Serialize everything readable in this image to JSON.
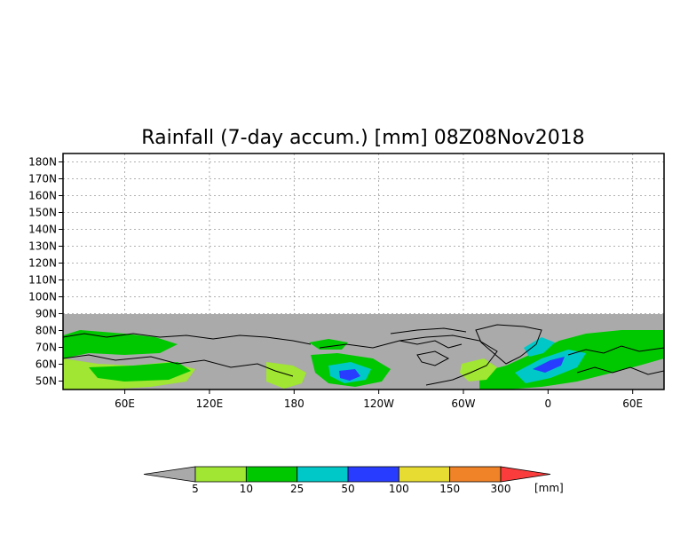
{
  "chart_data": {
    "type": "heatmap",
    "title": "Rainfall (7-day accum.) [mm] 08Z08Nov2018",
    "xlabel": "",
    "ylabel": "",
    "x_ticks": [
      "60E",
      "120E",
      "180",
      "120W",
      "60W",
      "0",
      "60E"
    ],
    "y_ticks": [
      "50N",
      "60N",
      "70N",
      "80N",
      "90N",
      "100N",
      "110N",
      "120N",
      "130N",
      "140N",
      "150N",
      "160N",
      "170N",
      "180N"
    ],
    "y_range": [
      45,
      185
    ],
    "grid": true,
    "colorbar": {
      "levels": [
        "5",
        "10",
        "25",
        "50",
        "100",
        "150",
        "300"
      ],
      "unit": "[mm]",
      "colors": [
        "#a9a9a9",
        "#a0e632",
        "#00c800",
        "#00c8c8",
        "#283cff",
        "#e6dc32",
        "#f08228",
        "#fa3c3c"
      ]
    },
    "field_colors": {
      "no_data": "#aaaaaa",
      "coastline": "#000000"
    }
  }
}
